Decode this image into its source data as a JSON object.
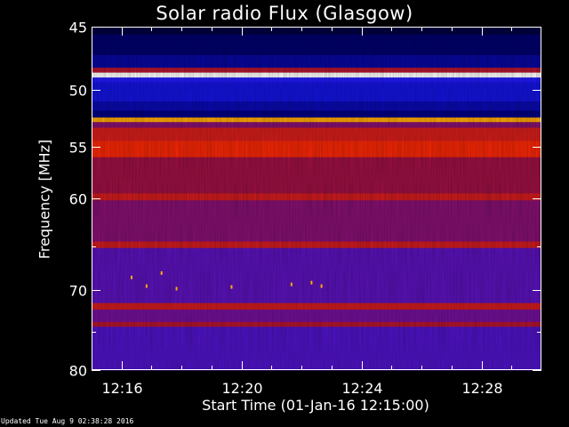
{
  "chart_data": {
    "type": "heatmap",
    "title": "Solar radio Flux (Glasgow)",
    "ylabel": "Frequency [MHz]",
    "xlabel": "Start Time (01-Jan-16 12:15:00)",
    "x_range": [
      "12:15:00",
      "12:30:00"
    ],
    "y_range_mhz": [
      45,
      80
    ],
    "y_scale": "log",
    "y_ticks": [
      {
        "value": 45,
        "label": "45"
      },
      {
        "value": 50,
        "label": "50"
      },
      {
        "value": 55,
        "label": "55"
      },
      {
        "value": 60,
        "label": "60"
      },
      {
        "value": 70,
        "label": "70"
      },
      {
        "value": 80,
        "label": "80"
      }
    ],
    "y_minor_ticks": [
      65,
      75
    ],
    "x_ticks": [
      {
        "value": "12:16",
        "label": "12:16"
      },
      {
        "value": "12:20",
        "label": "12:20"
      },
      {
        "value": "12:24",
        "label": "12:24"
      },
      {
        "value": "12:28",
        "label": "12:28"
      }
    ],
    "colormap": [
      "#000020",
      "#00007a",
      "#1a1aff",
      "#6a10a8",
      "#a0103a",
      "#ff2a00",
      "#ffb000",
      "#ffffff"
    ],
    "band_intensity": [
      {
        "mhz": [
          45.0,
          45.6
        ],
        "level": 0.05
      },
      {
        "mhz": [
          45.6,
          47.2
        ],
        "level": 0.12
      },
      {
        "mhz": [
          47.2,
          48.2
        ],
        "level": 0.18
      },
      {
        "mhz": [
          48.2,
          48.6
        ],
        "level": 0.6
      },
      {
        "mhz": [
          48.6,
          49.0
        ],
        "level": 1.0
      },
      {
        "mhz": [
          49.0,
          49.4
        ],
        "level": 0.3
      },
      {
        "mhz": [
          49.4,
          51.0
        ],
        "level": 0.25
      },
      {
        "mhz": [
          51.0,
          51.8
        ],
        "level": 0.2
      },
      {
        "mhz": [
          51.8,
          52.4
        ],
        "level": 0.15
      },
      {
        "mhz": [
          52.4,
          52.8
        ],
        "level": 0.85
      },
      {
        "mhz": [
          52.8,
          53.3
        ],
        "level": 0.5
      },
      {
        "mhz": [
          53.3,
          54.5
        ],
        "level": 0.65
      },
      {
        "mhz": [
          54.5,
          56.0
        ],
        "level": 0.7
      },
      {
        "mhz": [
          56.0,
          59.5
        ],
        "level": 0.56
      },
      {
        "mhz": [
          59.5,
          60.2
        ],
        "level": 0.64
      },
      {
        "mhz": [
          60.2,
          64.5
        ],
        "level": 0.5
      },
      {
        "mhz": [
          64.5,
          65.2
        ],
        "level": 0.64
      },
      {
        "mhz": [
          65.2,
          71.5
        ],
        "level": 0.4
      },
      {
        "mhz": [
          71.5,
          72.3
        ],
        "level": 0.64
      },
      {
        "mhz": [
          72.3,
          73.8
        ],
        "level": 0.45
      },
      {
        "mhz": [
          73.8,
          74.4
        ],
        "level": 0.6
      },
      {
        "mhz": [
          74.4,
          80.0
        ],
        "level": 0.38
      }
    ],
    "bursts": [
      {
        "time": "12:16:20",
        "mhz": 68.5
      },
      {
        "time": "12:16:50",
        "mhz": 69.5
      },
      {
        "time": "12:17:20",
        "mhz": 68.0
      },
      {
        "time": "12:17:50",
        "mhz": 69.8
      },
      {
        "time": "12:19:40",
        "mhz": 69.6
      },
      {
        "time": "12:21:40",
        "mhz": 69.3
      },
      {
        "time": "12:22:20",
        "mhz": 69.1
      },
      {
        "time": "12:22:40",
        "mhz": 69.5
      }
    ],
    "grid": false
  },
  "footer": {
    "updated": "Updated Tue Aug  9 02:38:28 2016"
  }
}
